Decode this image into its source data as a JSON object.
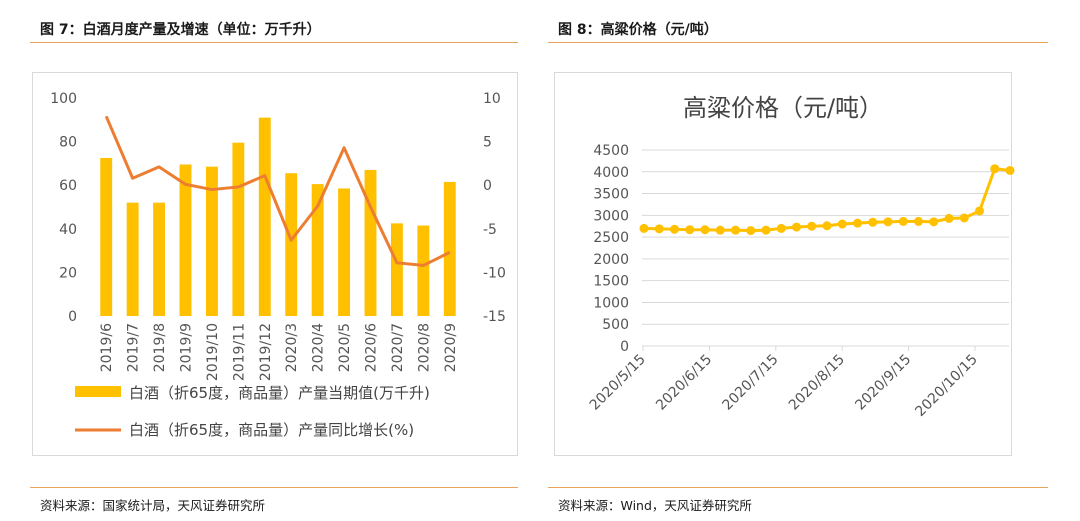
{
  "left": {
    "title": "图 7：白酒月度产量及增速（单位：万千升）",
    "source": "资料来源：国家统计局，天风证券研究所",
    "colors": {
      "bar": "#FFC000",
      "line": "#ED7D31",
      "rule": "#E8A45C"
    },
    "chart_data": {
      "type": "bar",
      "categories": [
        "2019/6",
        "2019/7",
        "2019/8",
        "2019/9",
        "2019/10",
        "2019/11",
        "2019/12",
        "2020/3",
        "2020/4",
        "2020/5",
        "2020/6",
        "2020/7",
        "2020/8",
        "2020/9"
      ],
      "series": [
        {
          "name": "白酒（折65度，商品量）产量当期值(万千升)",
          "type": "bar",
          "axis": "left",
          "values": [
            72.5,
            52.0,
            52.0,
            69.5,
            68.5,
            79.5,
            91.0,
            65.5,
            60.5,
            58.5,
            67.0,
            42.5,
            41.5,
            61.5
          ]
        },
        {
          "name": "白酒（折65度，商品量）产量同比增长(%)",
          "type": "line",
          "axis": "right",
          "values": [
            7.9,
            0.8,
            2.1,
            0.1,
            -0.5,
            -0.2,
            1.1,
            -6.3,
            -2.4,
            4.3,
            -2.5,
            -8.9,
            -9.2,
            -7.7
          ]
        }
      ],
      "y_left": {
        "ticks": [
          "0",
          "20",
          "40",
          "60",
          "80",
          "100"
        ],
        "ylim": [
          0,
          100
        ]
      },
      "y_right": {
        "ticks": [
          "-15",
          "-10",
          "-5",
          "0",
          "5",
          "10"
        ],
        "ylim": [
          -15,
          10
        ]
      },
      "grid": false,
      "legend_position": "bottom"
    }
  },
  "right": {
    "title": "图 8：高粱价格（元/吨）",
    "source": "资料来源：Wind，天风证券研究所",
    "colors": {
      "line": "#FFC000",
      "grid": "#D9D9D9",
      "rule": "#E8A45C"
    },
    "chart_data": {
      "type": "line",
      "title": "高粱价格（元/吨）",
      "x_ticks": [
        "2020/5/15",
        "2020/6/15",
        "2020/7/15",
        "2020/8/15",
        "2020/9/15",
        "2020/10/15"
      ],
      "y_ticks": [
        "0",
        "500",
        "1000",
        "1500",
        "2000",
        "2500",
        "3000",
        "3500",
        "4000",
        "4500"
      ],
      "ylim": [
        0,
        4500
      ],
      "grid": true,
      "series": [
        {
          "values": [
            2700,
            2690,
            2680,
            2670,
            2670,
            2660,
            2660,
            2650,
            2660,
            2700,
            2730,
            2750,
            2760,
            2800,
            2820,
            2840,
            2850,
            2860,
            2860,
            2850,
            2930,
            2940,
            3100,
            4070,
            4030
          ]
        }
      ]
    }
  }
}
